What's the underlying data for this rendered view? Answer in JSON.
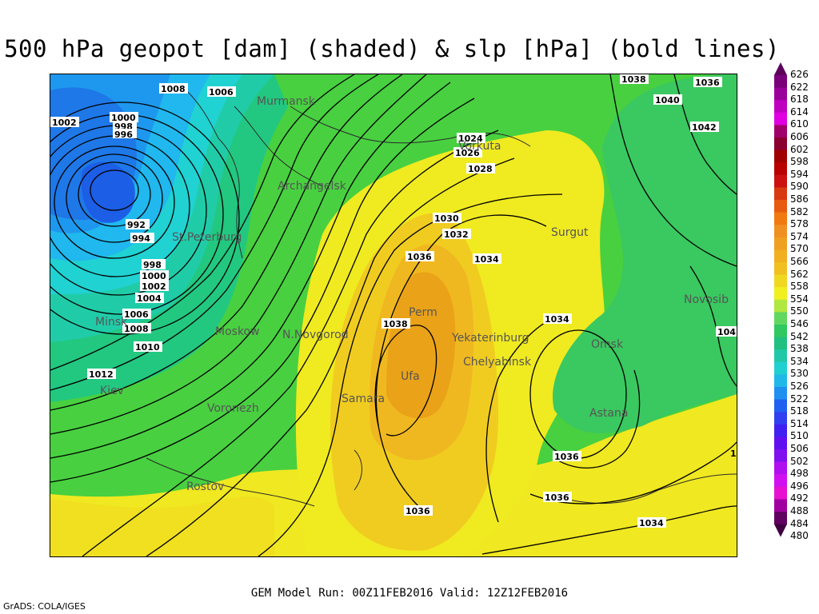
{
  "title": "500 hPa geopot [dam] (shaded) & slp [hPa] (bold lines)",
  "footer": "GEM Model Run: 00Z11FEB2016 Valid: 12Z12FEB2016",
  "credit": "GrADS: COLA/IGES",
  "colorbar": {
    "levels": [
      "626",
      "622",
      "618",
      "614",
      "610",
      "606",
      "602",
      "598",
      "594",
      "590",
      "586",
      "582",
      "578",
      "574",
      "570",
      "566",
      "562",
      "558",
      "554",
      "550",
      "546",
      "542",
      "538",
      "534",
      "530",
      "526",
      "522",
      "518",
      "514",
      "510",
      "506",
      "502",
      "498",
      "496",
      "492",
      "488",
      "484",
      "480"
    ],
    "colors": [
      "#5c005c",
      "#7a007a",
      "#9a009a",
      "#c000c0",
      "#e000e0",
      "#a0006a",
      "#8a0030",
      "#a00000",
      "#b80000",
      "#cc1010",
      "#d83a10",
      "#e85a10",
      "#f07a10",
      "#f09020",
      "#f0a020",
      "#f0b020",
      "#f0c020",
      "#f0d820",
      "#f0f020",
      "#b0e840",
      "#60d860",
      "#30c860",
      "#20c080",
      "#20c8a8",
      "#20d0d0",
      "#20b8e8",
      "#2090f0",
      "#2060f0",
      "#3040f0",
      "#4020f0",
      "#6010f0",
      "#8010f0",
      "#b010f0",
      "#d010f0",
      "#e810d0",
      "#a000a0",
      "#600060",
      "#400040"
    ]
  },
  "map": {
    "cities": [
      "Murmansk",
      "Archangelsk",
      "St.Peterburg",
      "Minsk",
      "Moskow",
      "N.Novgorod",
      "Kiev",
      "Voronezh",
      "Rostov",
      "Samara",
      "Perm",
      "Ufa",
      "Yekaterinburg",
      "Chelyabinsk",
      "Vorkuta",
      "Surgut",
      "Omsk",
      "Astana",
      "Novosib"
    ],
    "slp_labels": [
      "1008",
      "1006",
      "1002",
      "1000",
      "998",
      "996",
      "992",
      "994",
      "998",
      "1000",
      "1002",
      "1004",
      "1006",
      "1008",
      "1010",
      "1012",
      "1024",
      "1026",
      "1028",
      "1030",
      "1032",
      "1036",
      "1034",
      "1038",
      "1034",
      "1036",
      "1036",
      "1036",
      "1034",
      "1038",
      "1036",
      "1040",
      "1042",
      "104",
      "1"
    ],
    "shading_levels_dam": [
      518,
      522,
      526,
      530,
      534,
      538,
      542,
      546,
      550,
      554,
      558,
      562,
      566
    ],
    "shading_colors": {
      "518": "#1e7ae8",
      "522": "#1e96ee",
      "526": "#20b6ee",
      "530": "#20d0e0",
      "534": "#20d2b0",
      "538": "#22cc80",
      "542": "#30cc50",
      "546": "#58d838",
      "550": "#e8f020",
      "554": "#f5ea20",
      "558": "#f0d020",
      "562": "#f0bc20",
      "566": "#eaa618"
    }
  }
}
